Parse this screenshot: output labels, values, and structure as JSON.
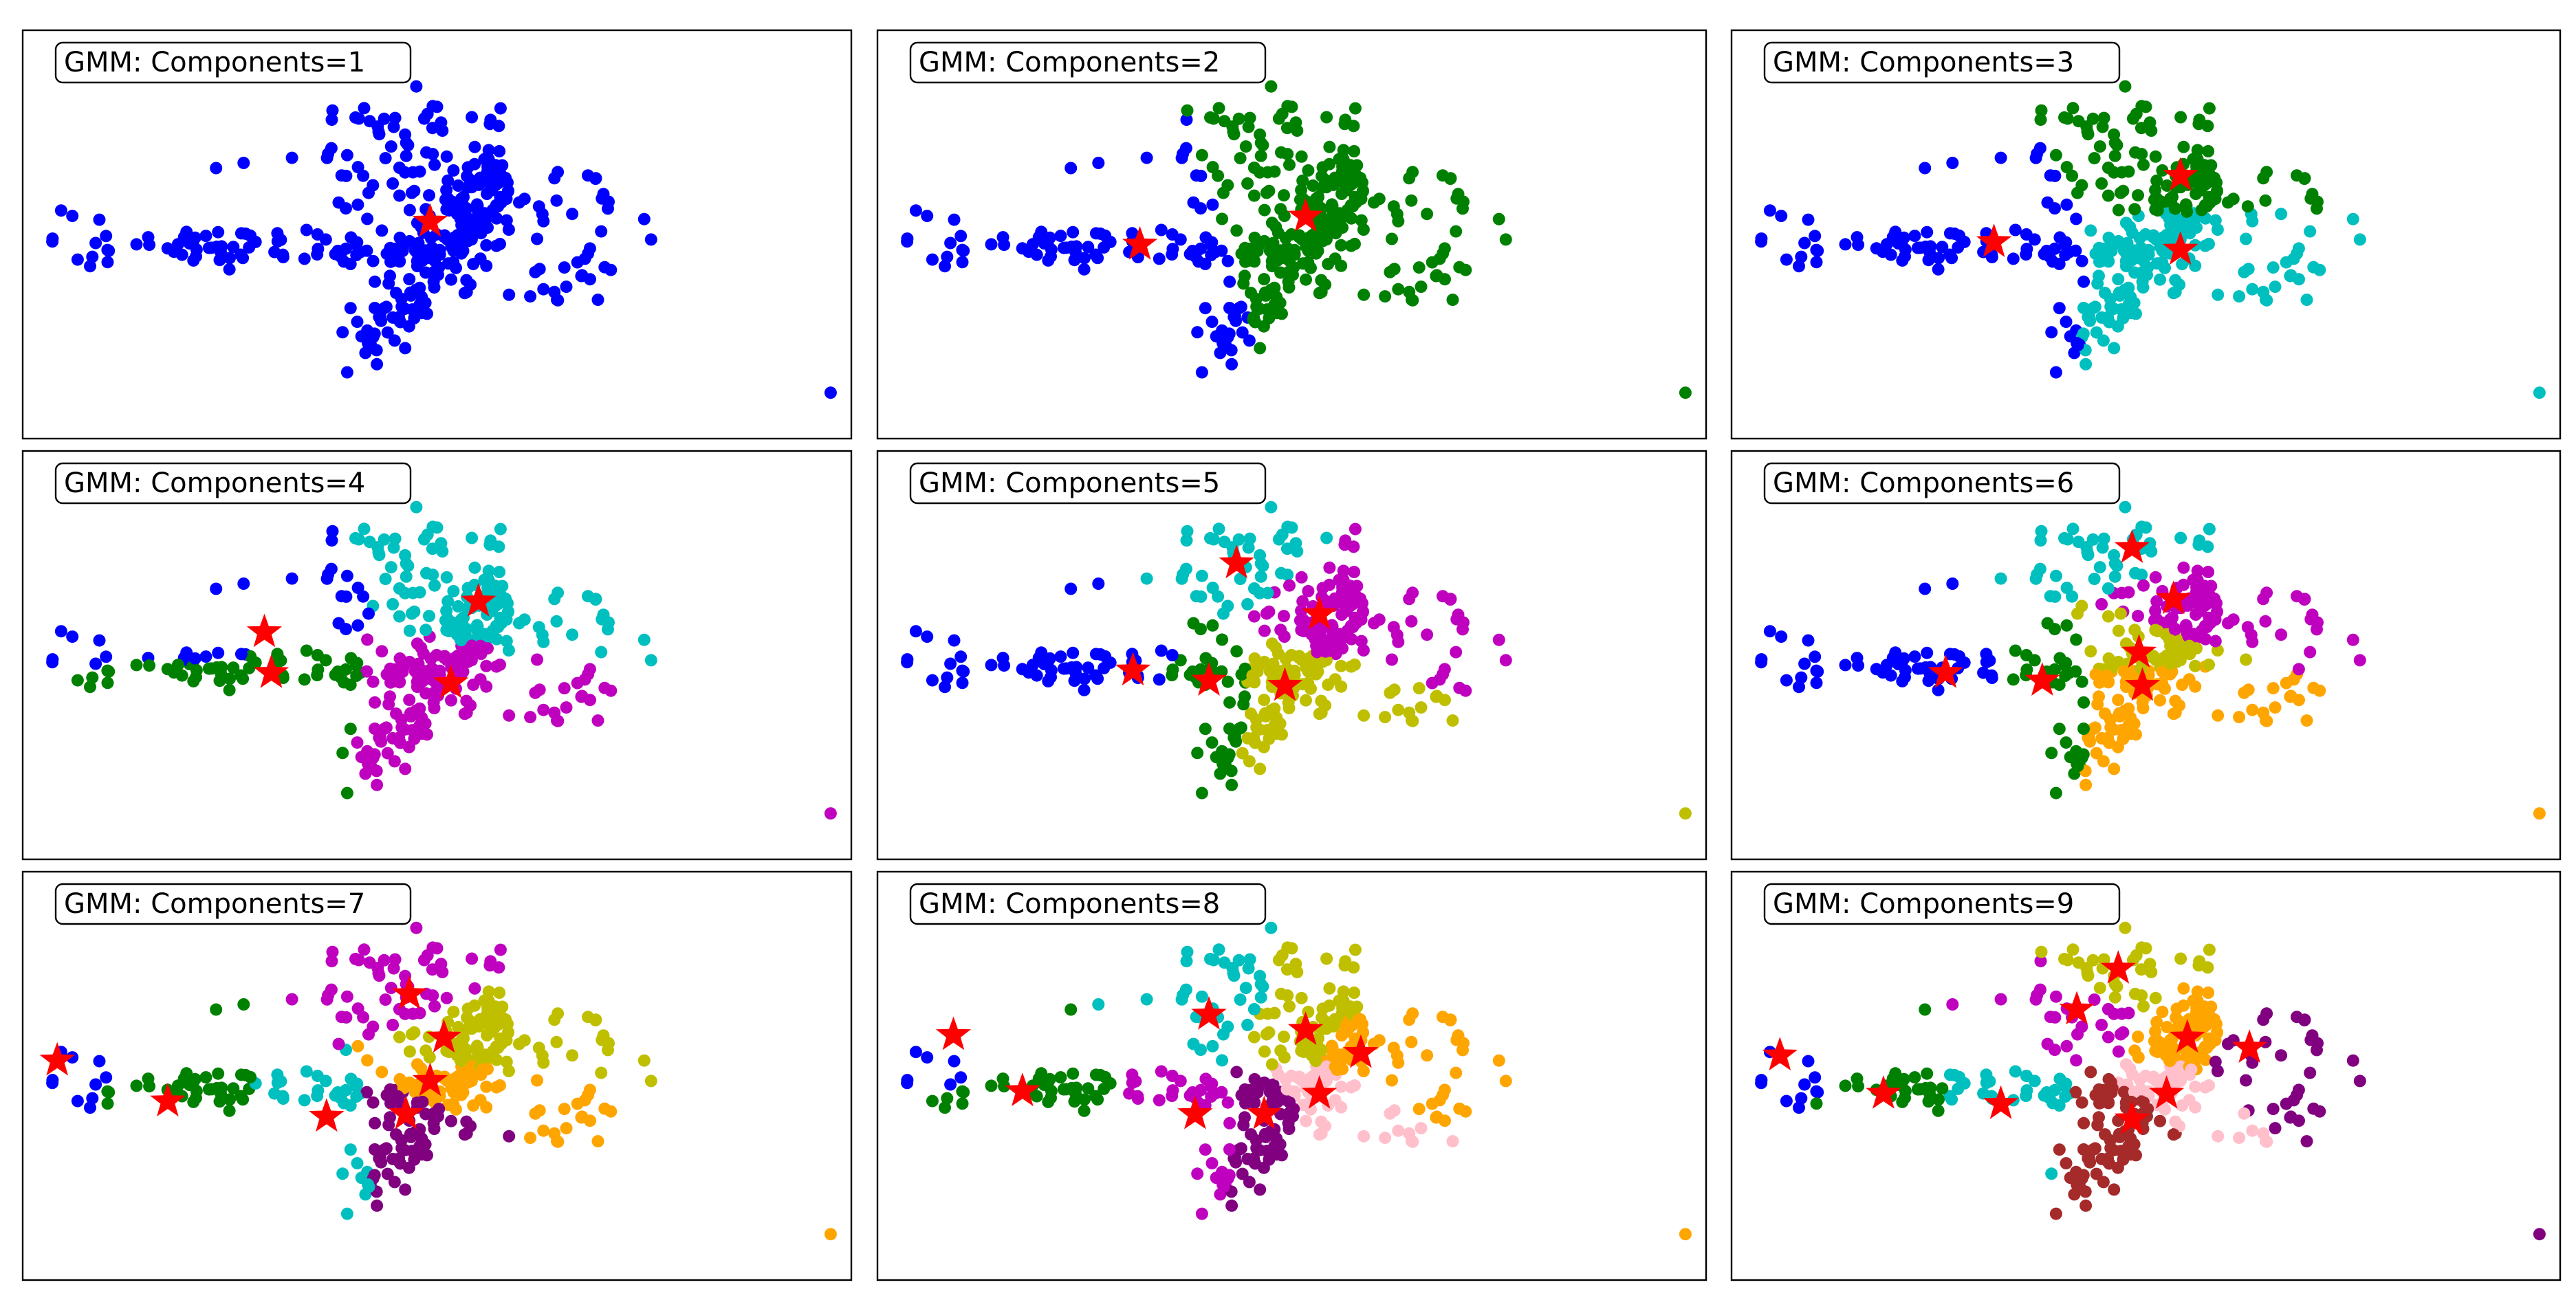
{
  "colors": {
    "blue": "#0000ff",
    "green": "#008000",
    "cyan": "#00bfbf",
    "magenta": "#bf00bf",
    "olive": "#bfbf00",
    "orange": "#ffa500",
    "purple": "#800080",
    "pink": "#ffc0cb",
    "brown": "#a52a2a",
    "star": "#ff0000"
  },
  "chart_data": [
    {
      "type": "scatter",
      "title": "GMM: Components=1",
      "xlim": [
        -6,
        6
      ],
      "ylim": [
        -4,
        4
      ],
      "grid": false,
      "components": 1,
      "marker": "star",
      "centers": [
        [
          -0.1,
          0.25
        ]
      ]
    },
    {
      "type": "scatter",
      "title": "GMM: Components=2",
      "xlim": [
        -6,
        6
      ],
      "ylim": [
        -4,
        4
      ],
      "grid": false,
      "components": 2,
      "marker": "star",
      "centers": [
        [
          -2.2,
          -0.2
        ],
        [
          0.2,
          0.35
        ]
      ]
    },
    {
      "type": "scatter",
      "title": "GMM: Components=3",
      "xlim": [
        -6,
        6
      ],
      "ylim": [
        -4,
        4
      ],
      "grid": false,
      "components": 3,
      "marker": "star",
      "centers": [
        [
          -2.2,
          -0.15
        ],
        [
          0.5,
          1.15
        ],
        [
          0.5,
          -0.3
        ]
      ]
    },
    {
      "type": "scatter",
      "title": "GMM: Components=4",
      "xlim": [
        -6,
        6
      ],
      "ylim": [
        -4,
        4
      ],
      "grid": false,
      "components": 4,
      "marker": "star",
      "centers": [
        [
          -2.5,
          0.45
        ],
        [
          -2.4,
          -0.35
        ],
        [
          0.6,
          1.05
        ],
        [
          0.2,
          -0.55
        ]
      ]
    },
    {
      "type": "scatter",
      "title": "GMM: Components=5",
      "xlim": [
        -6,
        6
      ],
      "ylim": [
        -4,
        4
      ],
      "grid": false,
      "components": 5,
      "marker": "star",
      "centers": [
        [
          -2.3,
          -0.3
        ],
        [
          -1.2,
          -0.5
        ],
        [
          -0.8,
          1.8
        ],
        [
          0.4,
          0.8
        ],
        [
          -0.1,
          -0.6
        ]
      ]
    },
    {
      "type": "scatter",
      "title": "GMM: Components=6",
      "xlim": [
        -6,
        6
      ],
      "ylim": [
        -4,
        4
      ],
      "grid": false,
      "components": 6,
      "marker": "star",
      "centers": [
        [
          -2.9,
          -0.35
        ],
        [
          -1.5,
          -0.5
        ],
        [
          -0.2,
          2.1
        ],
        [
          0.4,
          1.1
        ],
        [
          -0.1,
          0.05
        ],
        [
          -0.05,
          -0.6
        ]
      ]
    },
    {
      "type": "scatter",
      "title": "GMM: Components=7",
      "xlim": [
        -6,
        6
      ],
      "ylim": [
        -4,
        4
      ],
      "grid": false,
      "components": 7,
      "marker": "star",
      "centers": [
        [
          -5.5,
          0.3
        ],
        [
          -3.9,
          -0.5
        ],
        [
          -1.6,
          -0.8
        ],
        [
          -0.4,
          1.6
        ],
        [
          0.1,
          0.75
        ],
        [
          -0.1,
          -0.1
        ],
        [
          -0.45,
          -0.75
        ]
      ]
    },
    {
      "type": "scatter",
      "title": "GMM: Components=8",
      "xlim": [
        -6,
        6
      ],
      "ylim": [
        -4,
        4
      ],
      "grid": false,
      "components": 8,
      "marker": "star",
      "centers": [
        [
          -4.9,
          0.8
        ],
        [
          -3.9,
          -0.3
        ],
        [
          -1.2,
          1.2
        ],
        [
          -1.4,
          -0.75
        ],
        [
          0.2,
          0.9
        ],
        [
          1.0,
          0.45
        ],
        [
          -0.4,
          -0.75
        ],
        [
          0.4,
          -0.35
        ]
      ]
    },
    {
      "type": "scatter",
      "title": "GMM: Components=9",
      "xlim": [
        -6,
        6
      ],
      "ylim": [
        -4,
        4
      ],
      "grid": false,
      "components": 9,
      "marker": "star",
      "centers": [
        [
          -5.3,
          0.4
        ],
        [
          -3.8,
          -0.35
        ],
        [
          -2.1,
          -0.55
        ],
        [
          -1.0,
          1.3
        ],
        [
          -0.4,
          2.1
        ],
        [
          0.6,
          0.75
        ],
        [
          1.5,
          0.55
        ],
        [
          0.3,
          -0.35
        ],
        [
          -0.2,
          -0.85
        ]
      ]
    }
  ]
}
